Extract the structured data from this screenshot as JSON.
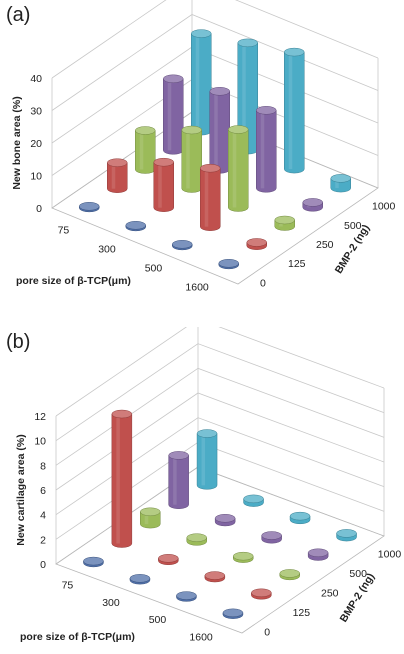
{
  "chart_data": [
    {
      "panel_label": "(a)",
      "type": "bar",
      "subtype": "3d-cylinder",
      "ylabel": "New bone area (%)",
      "xlabel": "pore size of β-TCP(μm)",
      "zlabel": "BMP-2 (ng)",
      "ylim": [
        0,
        40
      ],
      "yticks": [
        "0",
        "10",
        "20",
        "30",
        "40"
      ],
      "categories_pore": [
        "75",
        "300",
        "500",
        "1600"
      ],
      "categories_bmp": [
        "0",
        "125",
        "250",
        "500",
        "1000"
      ],
      "series": [
        {
          "bmp": "0",
          "color": "#4f6fa8",
          "values": [
            0.5,
            0.5,
            0.5,
            0.5
          ]
        },
        {
          "bmp": "125",
          "color": "#c0504d",
          "values": [
            8,
            14,
            18,
            1
          ]
        },
        {
          "bmp": "250",
          "color": "#9bbb59",
          "values": [
            12,
            18,
            24,
            2
          ]
        },
        {
          "bmp": "500",
          "color": "#8064a2",
          "values": [
            22,
            24,
            24,
            1.5
          ]
        },
        {
          "bmp": "1000",
          "color": "#4bacc6",
          "values": [
            30,
            33,
            36,
            3
          ]
        }
      ],
      "grid": true
    },
    {
      "panel_label": "(b)",
      "type": "bar",
      "subtype": "3d-cylinder",
      "ylabel": "New cartilage area (%)",
      "xlabel": "pore size of β-TCP(μm)",
      "zlabel": "BMP-2 (ng)",
      "ylim": [
        0,
        12
      ],
      "yticks": [
        "0",
        "2",
        "4",
        "6",
        "8",
        "10",
        "12"
      ],
      "categories_pore": [
        "75",
        "300",
        "500",
        "1600"
      ],
      "categories_bmp": [
        "0",
        "125",
        "250",
        "500",
        "1000"
      ],
      "series": [
        {
          "bmp": "0",
          "color": "#4f6fa8",
          "values": [
            0.15,
            0.15,
            0.15,
            0.15
          ]
        },
        {
          "bmp": "125",
          "color": "#c0504d",
          "values": [
            10.5,
            0.2,
            0.2,
            0.2
          ]
        },
        {
          "bmp": "250",
          "color": "#9bbb59",
          "values": [
            1,
            0.3,
            0.2,
            0.2
          ]
        },
        {
          "bmp": "500",
          "color": "#8064a2",
          "values": [
            4,
            0.3,
            0.3,
            0.3
          ]
        },
        {
          "bmp": "1000",
          "color": "#4bacc6",
          "values": [
            4.2,
            0.3,
            0.3,
            0.3
          ]
        }
      ],
      "grid": true
    }
  ]
}
